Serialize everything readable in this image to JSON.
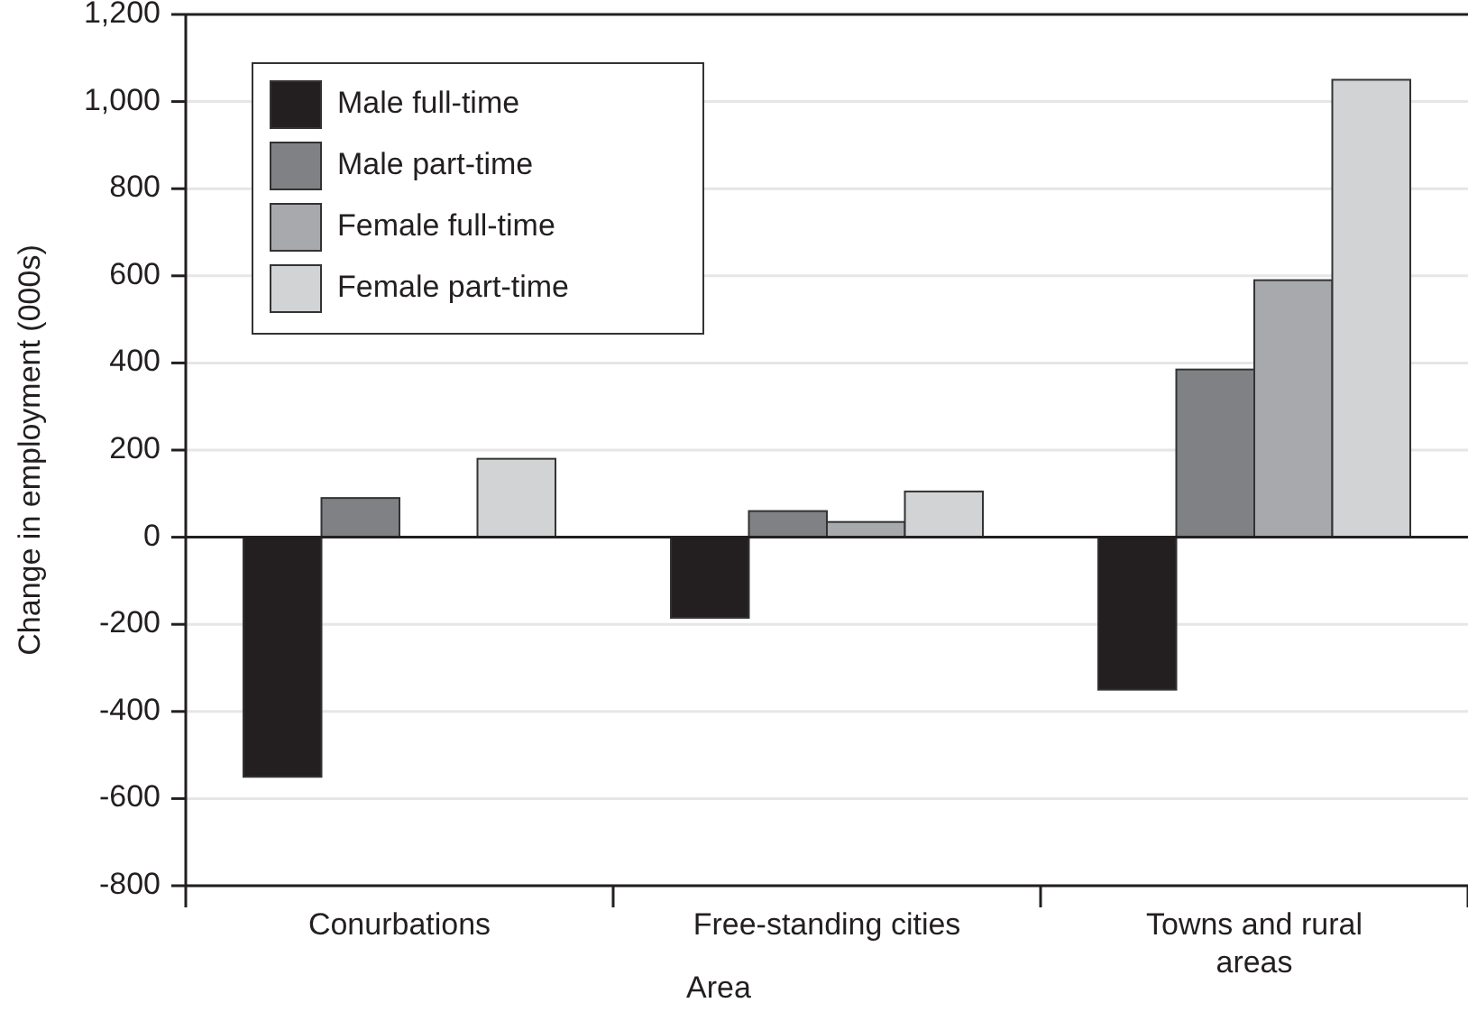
{
  "chart_data": {
    "type": "bar",
    "xlabel": "Area",
    "ylabel": "Change in employment (000s)",
    "categories": [
      "Conurbations",
      "Free-standing cities",
      "Towns and rural areas"
    ],
    "series": [
      {
        "name": "Male full-time",
        "color": "#231f20",
        "values": [
          -550,
          -185,
          -350
        ]
      },
      {
        "name": "Male part-time",
        "color": "#808184",
        "values": [
          90,
          60,
          385
        ]
      },
      {
        "name": "Female full-time",
        "color": "#a7a9ac",
        "values": [
          0,
          35,
          590
        ]
      },
      {
        "name": "Female part-time",
        "color": "#d1d3d4",
        "values": [
          180,
          105,
          1050
        ]
      }
    ],
    "ylim": [
      -800,
      1200
    ],
    "yticks": [
      -800,
      -600,
      -400,
      -200,
      0,
      200,
      400,
      600,
      800,
      {
        "value": 1000,
        "label": "1,000"
      },
      {
        "value": 1200,
        "label": "1,200"
      }
    ],
    "grid": "y",
    "legend": "top left"
  }
}
